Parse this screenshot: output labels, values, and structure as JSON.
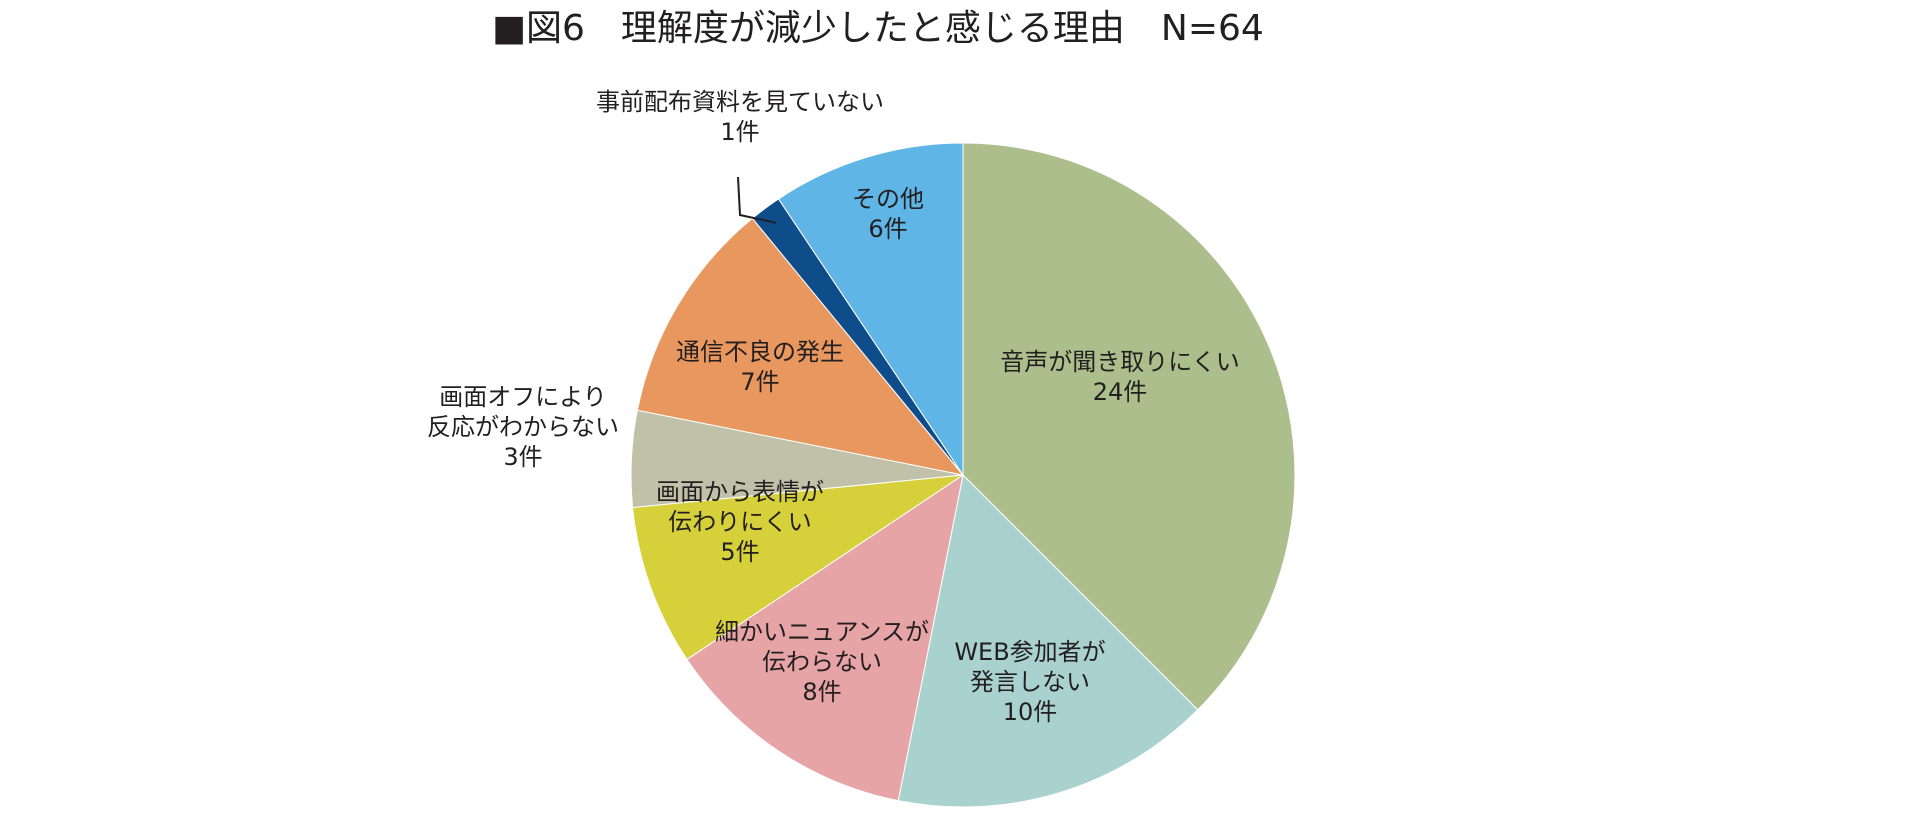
{
  "chart_data": {
    "type": "pie",
    "title": "■図6　理解度が減少したと感じる理由　N=64",
    "unit": "件",
    "slices": [
      {
        "name": "音声が聞き取りにくい",
        "label_lines": [
          "音声が聞き取りにくい"
        ],
        "value": 24,
        "value_label": "24件",
        "color": "#abbe8c"
      },
      {
        "name": "WEB参加者が発言しない",
        "label_lines": [
          "WEB参加者が",
          "発言しない"
        ],
        "value": 10,
        "value_label": "10件",
        "color": "#a9d2cf"
      },
      {
        "name": "細かいニュアンスが伝わらない",
        "label_lines": [
          "細かいニュアンスが",
          "伝わらない"
        ],
        "value": 8,
        "value_label": "8件",
        "color": "#e6a4a6"
      },
      {
        "name": "画面から表情が伝わりにくい",
        "label_lines": [
          "画面から表情が",
          "伝わりにくい"
        ],
        "value": 5,
        "value_label": "5件",
        "color": "#d6d13b"
      },
      {
        "name": "画面オフにより反応がわからない",
        "label_lines": [
          "画面オフにより",
          "反応がわからない"
        ],
        "value": 3,
        "value_label": "3件",
        "color": "#c1c0a8"
      },
      {
        "name": "通信不良の発生",
        "label_lines": [
          "通信不良の発生"
        ],
        "value": 7,
        "value_label": "7件",
        "color": "#e8975f"
      },
      {
        "name": "事前配布資料を見ていない",
        "label_lines": [
          "事前配布資料を見ていない"
        ],
        "value": 1,
        "value_label": "1件",
        "color": "#0e4d8a"
      },
      {
        "name": "その他",
        "label_lines": [
          "その他"
        ],
        "value": 6,
        "value_label": "6件",
        "color": "#5fb5e6"
      }
    ]
  }
}
